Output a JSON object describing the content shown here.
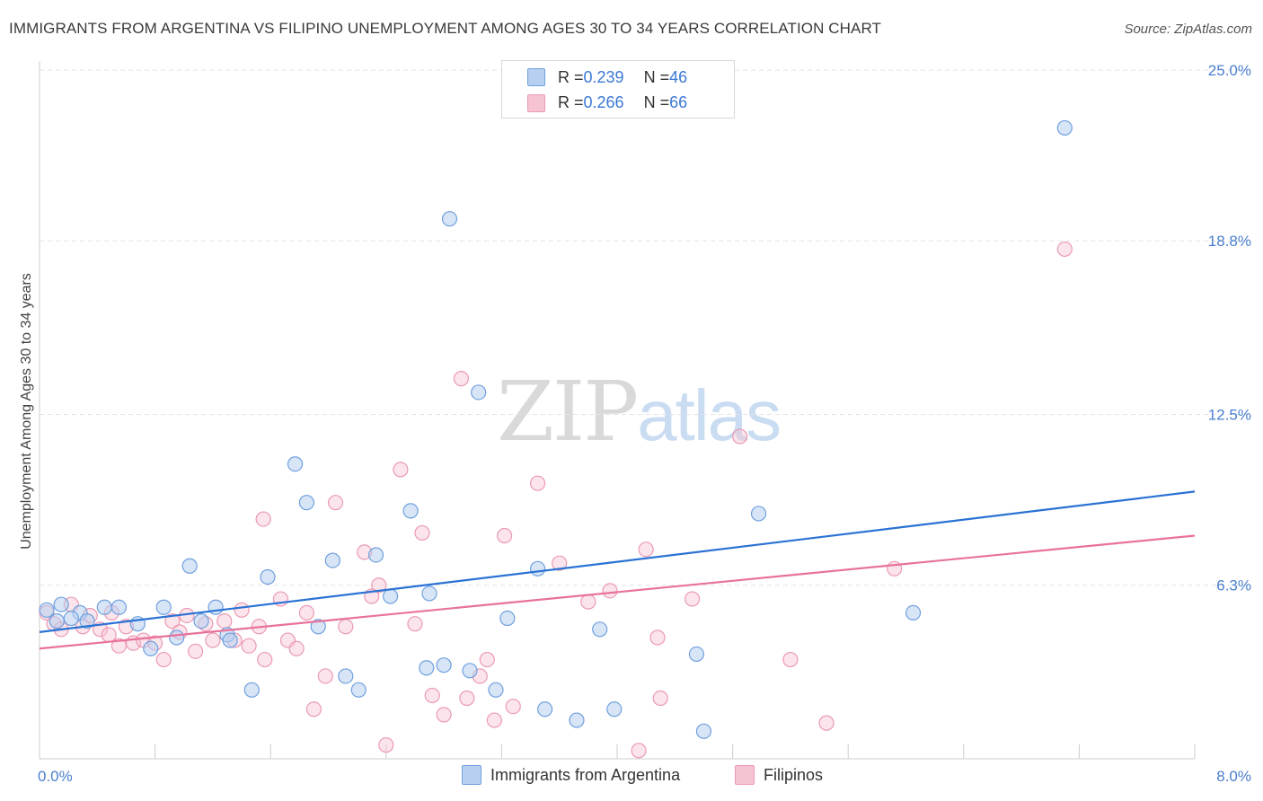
{
  "title": "IMMIGRANTS FROM ARGENTINA VS FILIPINO UNEMPLOYMENT AMONG AGES 30 TO 34 YEARS CORRELATION CHART",
  "source": "Source: ZipAtlas.com",
  "watermark": {
    "part1": "ZIP",
    "part2": "atlas"
  },
  "legend": {
    "rows": [
      {
        "r_label": "R = ",
        "r_value": "0.239",
        "n_label": "N = ",
        "n_value": "46"
      },
      {
        "r_label": "R = ",
        "r_value": "0.266",
        "n_label": "N = ",
        "n_value": "66"
      }
    ]
  },
  "bottom_legend": [
    "Immigrants from Argentina",
    "Filipinos"
  ],
  "colors": {
    "blue_fill": "#b7d0f0",
    "blue_stroke": "#6fa0de",
    "blue_line": "#2a72d4",
    "pink_fill": "#f6c3d3",
    "pink_stroke": "#eb9ab4",
    "pink_line": "#e8729a",
    "grid": "#e3e3e3",
    "axis_text": "#4a7fcf"
  },
  "chart_data": {
    "type": "scatter",
    "title": "IMMIGRANTS FROM ARGENTINA VS FILIPINO UNEMPLOYMENT AMONG AGES 30 TO 34 YEARS CORRELATION CHART",
    "xlabel": "",
    "ylabel": "Unemployment Among Ages 30 to 34 years",
    "xlim": [
      0,
      8.0
    ],
    "ylim": [
      0,
      25.0
    ],
    "x_tick_labels": [
      "0.0%",
      "8.0%"
    ],
    "y_ticks": [
      6.3,
      12.5,
      18.8,
      25.0
    ],
    "y_tick_labels": [
      "6.3%",
      "12.5%",
      "18.8%",
      "25.0%"
    ],
    "grid": true,
    "legend_position": "top-center",
    "series": [
      {
        "name": "Immigrants from Argentina",
        "color": "#6fa0de",
        "trend": {
          "x": [
            0.0,
            8.0
          ],
          "y": [
            4.6,
            9.7
          ]
        },
        "points": [
          [
            0.05,
            5.4
          ],
          [
            0.15,
            5.6
          ],
          [
            0.28,
            5.3
          ],
          [
            0.33,
            5.0
          ],
          [
            0.45,
            5.5
          ],
          [
            0.55,
            5.5
          ],
          [
            0.68,
            4.9
          ],
          [
            0.77,
            4.0
          ],
          [
            0.86,
            5.5
          ],
          [
            0.95,
            4.4
          ],
          [
            1.04,
            7.0
          ],
          [
            1.12,
            5.0
          ],
          [
            1.22,
            5.5
          ],
          [
            1.3,
            4.5
          ],
          [
            1.32,
            4.3
          ],
          [
            1.47,
            2.5
          ],
          [
            1.58,
            6.6
          ],
          [
            1.77,
            10.7
          ],
          [
            1.85,
            9.3
          ],
          [
            1.93,
            4.8
          ],
          [
            2.03,
            7.2
          ],
          [
            2.12,
            3.0
          ],
          [
            2.21,
            2.5
          ],
          [
            2.33,
            7.4
          ],
          [
            2.43,
            5.9
          ],
          [
            2.57,
            9.0
          ],
          [
            2.7,
            6.0
          ],
          [
            2.68,
            3.3
          ],
          [
            2.8,
            3.4
          ],
          [
            2.84,
            19.6
          ],
          [
            2.98,
            3.2
          ],
          [
            3.04,
            13.3
          ],
          [
            3.16,
            2.5
          ],
          [
            3.24,
            5.1
          ],
          [
            3.45,
            6.9
          ],
          [
            3.5,
            1.8
          ],
          [
            3.72,
            1.4
          ],
          [
            3.88,
            4.7
          ],
          [
            3.98,
            1.8
          ],
          [
            4.55,
            3.8
          ],
          [
            4.6,
            1.0
          ],
          [
            4.98,
            8.9
          ],
          [
            6.05,
            5.3
          ],
          [
            7.1,
            22.9
          ],
          [
            0.12,
            5.0
          ],
          [
            0.22,
            5.1
          ]
        ]
      },
      {
        "name": "Filipinos",
        "color": "#eb9ab4",
        "trend": {
          "x": [
            0.0,
            8.0
          ],
          "y": [
            4.0,
            8.1
          ]
        },
        "points": [
          [
            0.05,
            5.3
          ],
          [
            0.1,
            4.9
          ],
          [
            0.15,
            4.7
          ],
          [
            0.22,
            5.6
          ],
          [
            0.3,
            4.8
          ],
          [
            0.35,
            5.2
          ],
          [
            0.42,
            4.7
          ],
          [
            0.48,
            4.5
          ],
          [
            0.55,
            4.1
          ],
          [
            0.6,
            4.8
          ],
          [
            0.65,
            4.2
          ],
          [
            0.72,
            4.3
          ],
          [
            0.8,
            4.2
          ],
          [
            0.86,
            3.6
          ],
          [
            0.92,
            5.0
          ],
          [
            0.97,
            4.6
          ],
          [
            1.02,
            5.2
          ],
          [
            1.08,
            3.9
          ],
          [
            1.15,
            4.9
          ],
          [
            1.2,
            4.3
          ],
          [
            1.28,
            5.0
          ],
          [
            1.35,
            4.3
          ],
          [
            1.4,
            5.4
          ],
          [
            1.45,
            4.1
          ],
          [
            1.52,
            4.8
          ],
          [
            1.56,
            3.6
          ],
          [
            1.55,
            8.7
          ],
          [
            1.67,
            5.8
          ],
          [
            1.72,
            4.3
          ],
          [
            1.78,
            4.0
          ],
          [
            1.85,
            5.3
          ],
          [
            1.9,
            1.8
          ],
          [
            1.98,
            3.0
          ],
          [
            2.05,
            9.3
          ],
          [
            2.12,
            4.8
          ],
          [
            2.25,
            7.5
          ],
          [
            2.3,
            5.9
          ],
          [
            2.35,
            6.3
          ],
          [
            2.4,
            0.5
          ],
          [
            2.5,
            10.5
          ],
          [
            2.6,
            4.9
          ],
          [
            2.65,
            8.2
          ],
          [
            2.72,
            2.3
          ],
          [
            2.8,
            1.6
          ],
          [
            2.92,
            13.8
          ],
          [
            2.96,
            2.2
          ],
          [
            3.05,
            3.0
          ],
          [
            3.1,
            3.6
          ],
          [
            3.15,
            1.4
          ],
          [
            3.22,
            8.1
          ],
          [
            3.28,
            1.9
          ],
          [
            3.45,
            10.0
          ],
          [
            3.6,
            7.1
          ],
          [
            3.8,
            5.7
          ],
          [
            3.95,
            6.1
          ],
          [
            4.15,
            0.3
          ],
          [
            4.2,
            7.6
          ],
          [
            4.28,
            4.4
          ],
          [
            4.3,
            2.2
          ],
          [
            4.52,
            5.8
          ],
          [
            4.85,
            11.7
          ],
          [
            5.2,
            3.6
          ],
          [
            5.45,
            1.3
          ],
          [
            5.92,
            6.9
          ],
          [
            7.1,
            18.5
          ],
          [
            0.5,
            5.3
          ]
        ]
      }
    ]
  }
}
